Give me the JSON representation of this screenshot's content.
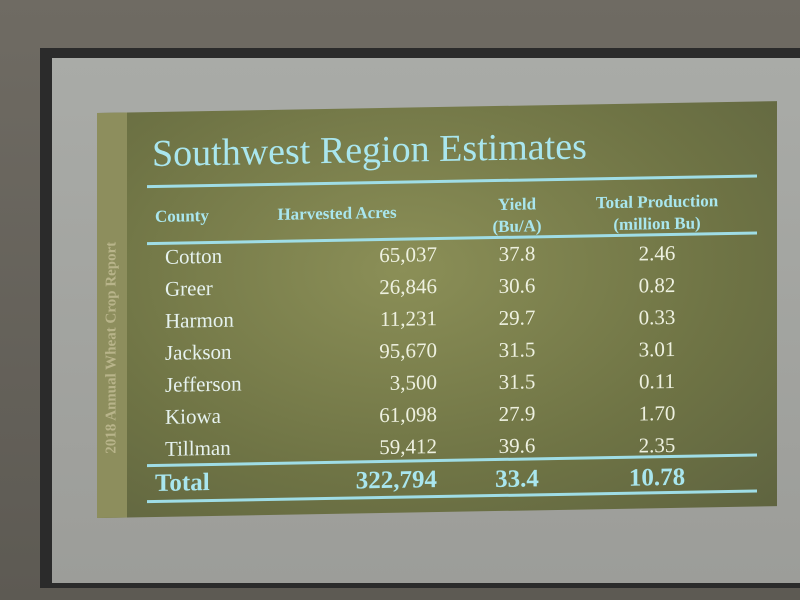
{
  "slide": {
    "side_label": "2018 Annual Wheat Crop Report",
    "title": "Southwest Region Estimates",
    "table": {
      "header": [
        [
          "County"
        ],
        [
          "Harvested Acres"
        ],
        [
          "Yield",
          "(Bu/A)"
        ],
        [
          "Total Production",
          "(million Bu)"
        ]
      ],
      "rows": [
        [
          "Cotton",
          "65,037",
          "37.8",
          "2.46"
        ],
        [
          "Greer",
          "26,846",
          "30.6",
          "0.82"
        ],
        [
          "Harmon",
          "11,231",
          "29.7",
          "0.33"
        ],
        [
          "Jackson",
          "95,670",
          "31.5",
          "3.01"
        ],
        [
          "Jefferson",
          "3,500",
          "31.5",
          "0.11"
        ],
        [
          "Kiowa",
          "61,098",
          "27.9",
          "1.70"
        ],
        [
          "Tillman",
          "59,412",
          "39.6",
          "2.35"
        ]
      ],
      "total": [
        "Total",
        "322,794",
        "33.4",
        "10.78"
      ]
    }
  }
}
